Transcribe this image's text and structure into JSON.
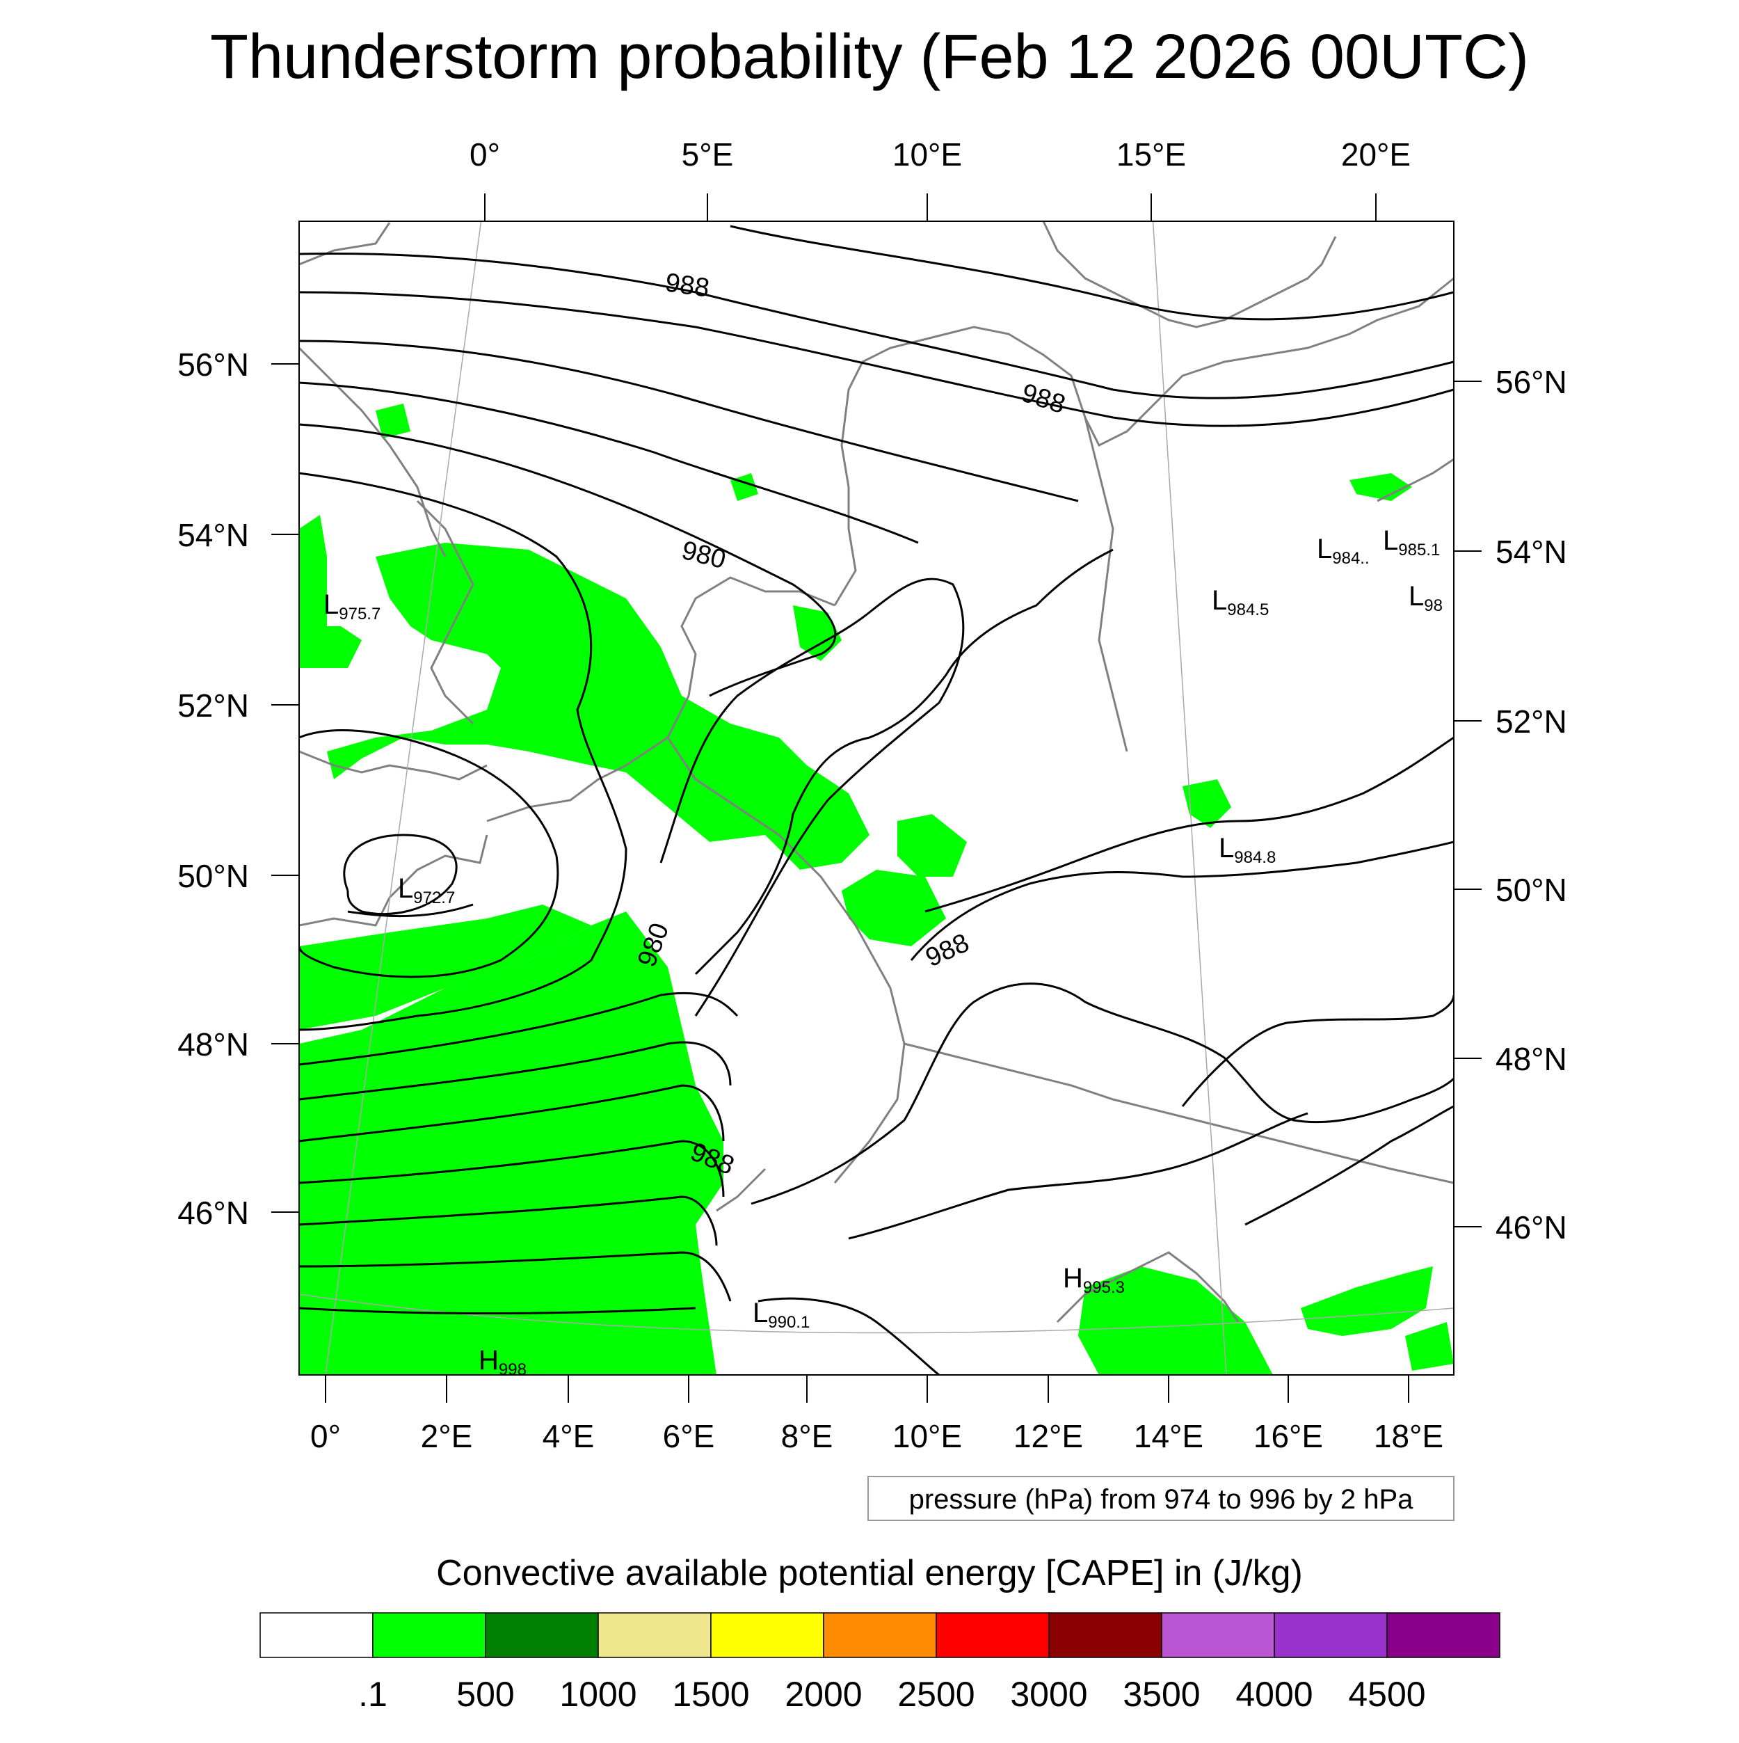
{
  "title": "Thunderstorm probability (Feb 12 2026 00UTC)",
  "map": {
    "top_lon_labels": [
      "0°",
      "5°E",
      "10°E",
      "15°E",
      "20°E"
    ],
    "bottom_lon_labels": [
      "0°",
      "2°E",
      "4°E",
      "6°E",
      "8°E",
      "10°E",
      "12°E",
      "14°E",
      "16°E",
      "18°E"
    ],
    "left_lat_labels": [
      "56°N",
      "54°N",
      "52°N",
      "50°N",
      "48°N",
      "46°N"
    ],
    "right_lat_labels": [
      "56°N",
      "54°N",
      "52°N",
      "50°N",
      "48°N",
      "46°N"
    ],
    "isobar_labels": [
      "988",
      "988",
      "980",
      "980",
      "988",
      "988"
    ],
    "pressure_centers": [
      {
        "type": "L",
        "value": "975.7"
      },
      {
        "type": "L",
        "value": "972.7"
      },
      {
        "type": "L",
        "value": "984.5"
      },
      {
        "type": "L",
        "value": "984.8"
      },
      {
        "type": "L",
        "value": "984.."
      },
      {
        "type": "L",
        "value": "985.1"
      },
      {
        "type": "L",
        "value": "98"
      },
      {
        "type": "L",
        "value": "990.1"
      },
      {
        "type": "H",
        "value": "995.3"
      },
      {
        "type": "H",
        "value": "998"
      }
    ],
    "contour_note": "pressure (hPa) from 974 to 996 by 2 hPa",
    "contour_interval_hpa": {
      "min": 974,
      "max": 996,
      "step": 2
    },
    "colors": {
      "coast": "#808080",
      "isobar": "#000000",
      "cape_fill": "#00ff00"
    }
  },
  "legend": {
    "title": "Convective available potential energy [CAPE] in (J/kg)",
    "colors": [
      "#ffffff",
      "#00ff00",
      "#008000",
      "#f0e68c",
      "#ffff00",
      "#ff8c00",
      "#ff0000",
      "#8b0000",
      "#ba55d3",
      "#9932cc",
      "#8b008b"
    ],
    "tick_labels": [
      ".1",
      "500",
      "1000",
      "1500",
      "2000",
      "2500",
      "3000",
      "3500",
      "4000",
      "4500"
    ]
  }
}
